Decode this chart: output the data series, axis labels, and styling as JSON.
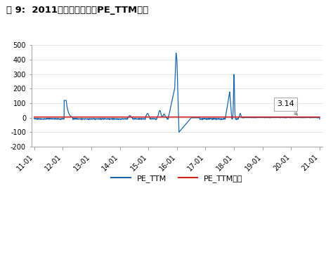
{
  "title": "图 9:  2011年至今华菱钢铁PE_TTM估值",
  "ylim": [
    -200,
    500
  ],
  "yticks": [
    -200,
    -100,
    0,
    100,
    200,
    300,
    400,
    500
  ],
  "xtick_labels": [
    "11-01",
    "12-01",
    "13-01",
    "14-01",
    "15-01",
    "16-01",
    "17-01",
    "18-01",
    "19-01",
    "20-01",
    "21-01"
  ],
  "line1_color": "#1966b0",
  "line2_color": "#cc2222",
  "annotation_text": "3.14",
  "legend_labels": [
    "PE_TTM",
    "PE_TTM中枢"
  ],
  "background_color": "#ffffff",
  "title_color": "#000000",
  "grid_color": "#dddddd",
  "spine_color": "#aaaaaa"
}
